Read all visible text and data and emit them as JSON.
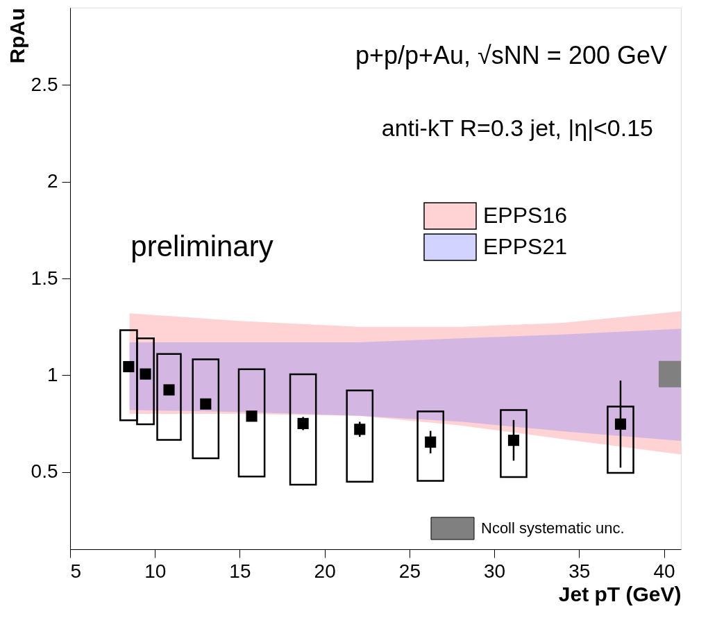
{
  "chart_data": {
    "type": "scatter",
    "xlabel": "Jet pT (GeV)",
    "ylabel": "RpAu",
    "xlim": [
      5,
      41
    ],
    "ylim": [
      0.1,
      2.9
    ],
    "xticks": [
      5,
      10,
      15,
      20,
      25,
      30,
      35,
      40
    ],
    "yticks": [
      0.5,
      1,
      1.5,
      2,
      2.5
    ],
    "grid": false,
    "legend": "right",
    "annotations": [
      "p+p/p+Au, √sNN = 200 GeV",
      "anti-kT R=0.3 jet, |η|<0.15",
      "preliminary"
    ],
    "series": [
      {
        "name": "EPPS16",
        "type": "area",
        "color": "#ff8080",
        "x": [
          8.5,
          15,
          22,
          28,
          34,
          41
        ],
        "values": [
          null,
          null,
          null,
          null,
          null,
          null
        ],
        "lower": [
          0.8,
          0.8,
          0.79,
          0.74,
          0.67,
          0.59
        ],
        "upper": [
          1.32,
          1.28,
          1.25,
          1.25,
          1.27,
          1.33
        ]
      },
      {
        "name": "EPPS21",
        "type": "area",
        "color": "#8080ff",
        "x": [
          8.5,
          15,
          22,
          28,
          34,
          41
        ],
        "values": [
          null,
          null,
          null,
          null,
          null,
          null
        ],
        "lower": [
          0.82,
          0.81,
          0.79,
          0.76,
          0.71,
          0.66
        ],
        "upper": [
          1.17,
          1.17,
          1.17,
          1.19,
          1.21,
          1.24
        ]
      },
      {
        "type": "bar",
        "x": [
          8.45,
          9.44,
          10.83,
          12.99,
          15.7,
          18.73,
          22.07,
          26.24,
          31.14,
          37.44
        ],
        "base": [
          0.767,
          0.746,
          0.665,
          0.57,
          0.476,
          0.434,
          0.449,
          0.454,
          0.473,
          0.495
        ],
        "values": [
          0.466,
          0.444,
          0.445,
          0.512,
          0.555,
          0.571,
          0.472,
          0.359,
          0.347,
          0.343
        ]
      },
      {
        "name": "Ncoll systematic unc.",
        "type": "bar",
        "color": "#808080",
        "x": [
          40.5
        ],
        "base": [
          0.942
        ],
        "values": [
          0.127
        ]
      },
      {
        "color": "#000000",
        "marker": "square",
        "x": [
          8.45,
          9.44,
          10.83,
          12.99,
          15.7,
          18.73,
          22.07,
          26.24,
          31.14,
          37.44
        ],
        "values": [
          1.044,
          1.006,
          0.924,
          0.851,
          0.788,
          0.75,
          0.72,
          0.654,
          0.663,
          0.747
        ],
        "errors": [
          null,
          null,
          null,
          null,
          null,
          0.034,
          0.039,
          0.058,
          0.105,
          0.225
        ]
      }
    ]
  }
}
